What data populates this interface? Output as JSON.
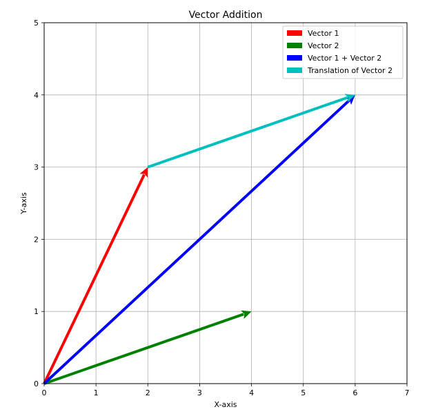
{
  "chart_data": {
    "type": "quiver",
    "title": "Vector Addition",
    "xlabel": "X-axis",
    "ylabel": "Y-axis",
    "xlim": [
      0,
      7
    ],
    "ylim": [
      0,
      5
    ],
    "xticks": [
      0,
      1,
      2,
      3,
      4,
      5,
      6,
      7
    ],
    "yticks": [
      0,
      1,
      2,
      3,
      4,
      5
    ],
    "grid": true,
    "legend_position": "top-right",
    "series": [
      {
        "name": "Vector 1",
        "color": "#ff0000",
        "x0": 0,
        "y0": 0,
        "x1": 2,
        "y1": 3
      },
      {
        "name": "Vector 2",
        "color": "#008000",
        "x0": 0,
        "y0": 0,
        "x1": 4,
        "y1": 1
      },
      {
        "name": "Vector 1 + Vector 2",
        "color": "#0000ff",
        "x0": 0,
        "y0": 0,
        "x1": 6,
        "y1": 4
      },
      {
        "name": "Translation of Vector 2",
        "color": "#00bfbf",
        "x0": 2,
        "y0": 3,
        "x1": 6,
        "y1": 4
      }
    ]
  }
}
